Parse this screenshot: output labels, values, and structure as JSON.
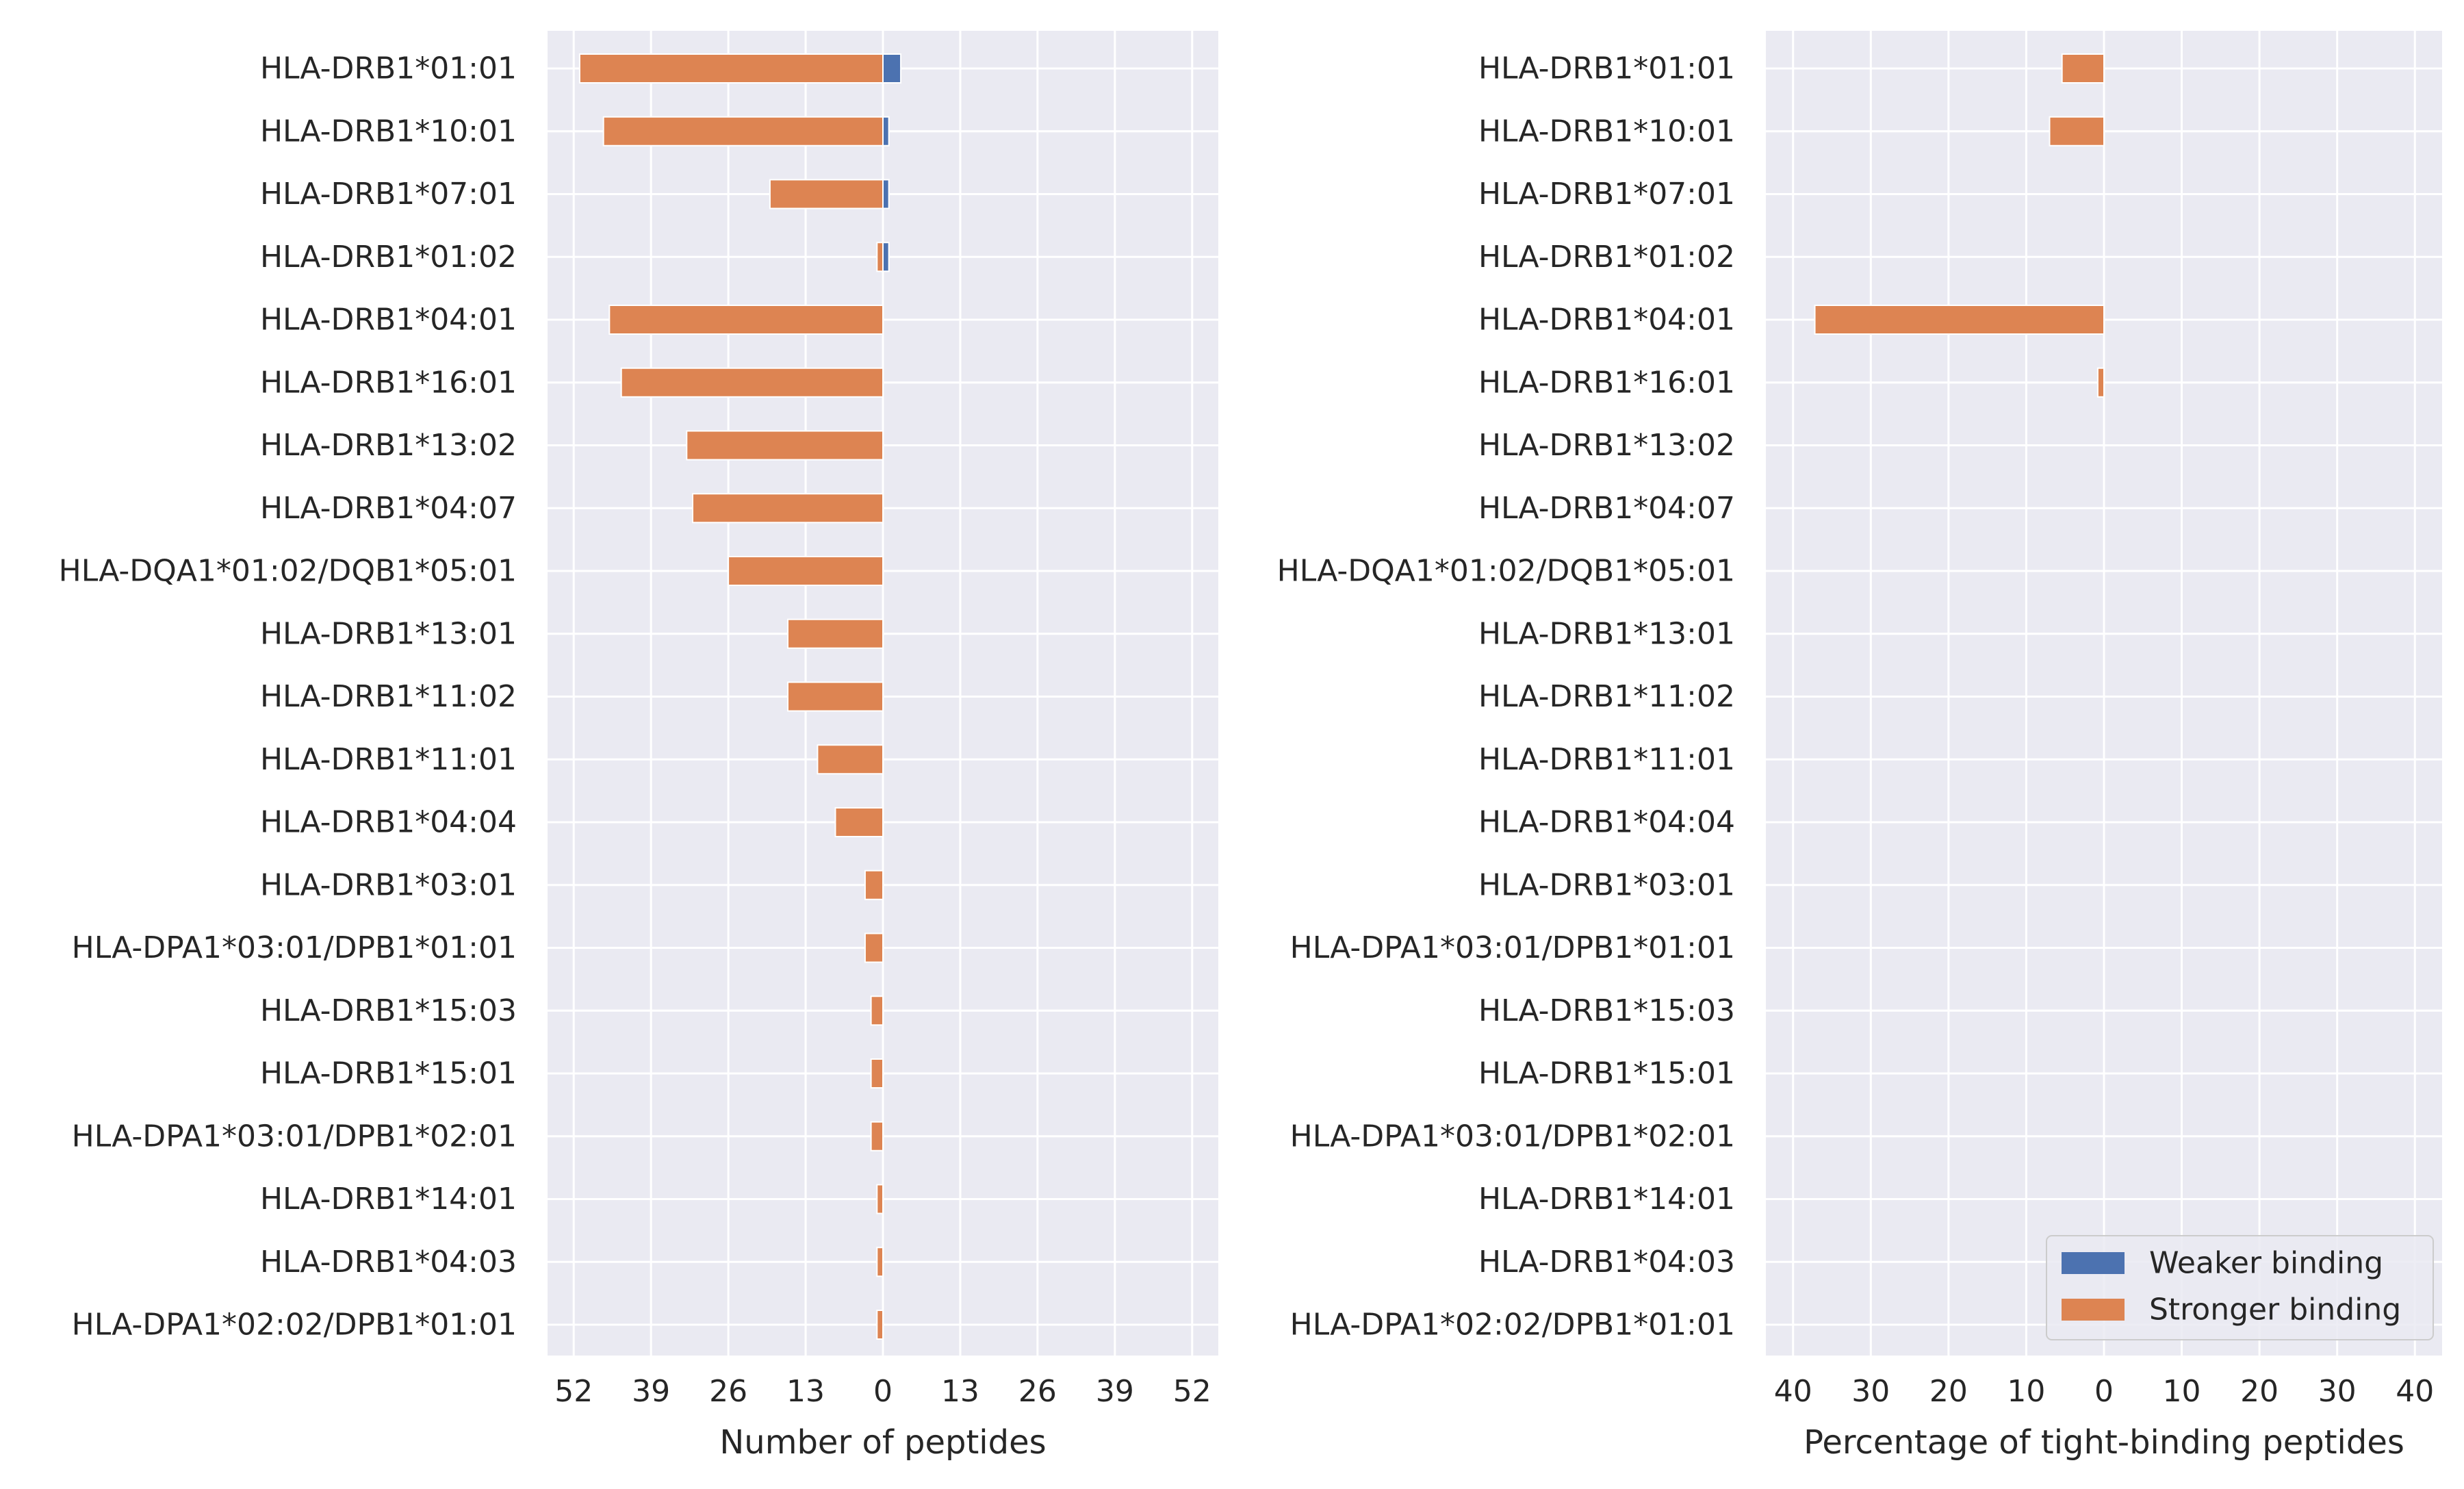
{
  "chart_data": [
    {
      "type": "bar",
      "orientation": "horizontal",
      "xlabel": "Number of peptides",
      "xlim": [
        -56.4,
        56.4
      ],
      "xticks": [
        -52,
        -39,
        -26,
        -13,
        0,
        13,
        26,
        39,
        52
      ],
      "xtick_labels": [
        "52",
        "39",
        "26",
        "13",
        "0",
        "13",
        "26",
        "39",
        "52"
      ],
      "grid": true,
      "categories": [
        "HLA-DRB1*01:01",
        "HLA-DRB1*10:01",
        "HLA-DRB1*07:01",
        "HLA-DRB1*01:02",
        "HLA-DRB1*04:01",
        "HLA-DRB1*16:01",
        "HLA-DRB1*13:02",
        "HLA-DRB1*04:07",
        "HLA-DQA1*01:02/DQB1*05:01",
        "HLA-DRB1*13:01",
        "HLA-DRB1*11:02",
        "HLA-DRB1*11:01",
        "HLA-DRB1*04:04",
        "HLA-DRB1*03:01",
        "HLA-DPA1*03:01/DPB1*01:01",
        "HLA-DRB1*15:03",
        "HLA-DRB1*15:01",
        "HLA-DPA1*03:01/DPB1*02:01",
        "HLA-DRB1*14:01",
        "HLA-DRB1*04:03",
        "HLA-DPA1*02:02/DPB1*01:01"
      ],
      "series": [
        {
          "name": "Weaker binding",
          "color": "#4c72b0",
          "values": [
            3,
            1,
            1,
            1,
            0,
            0,
            0,
            0,
            0,
            0,
            0,
            0,
            0,
            0,
            0,
            0,
            0,
            0,
            0,
            0,
            0
          ]
        },
        {
          "name": "Stronger binding",
          "color": "#dd8452",
          "values": [
            -51,
            -47,
            -19,
            -1,
            -46,
            -44,
            -33,
            -32,
            -26,
            -16,
            -16,
            -11,
            -8,
            -3,
            -3,
            -2,
            -2,
            -2,
            -1,
            -1,
            -1
          ]
        }
      ]
    },
    {
      "type": "bar",
      "orientation": "horizontal",
      "xlabel": "Percentage of tight-binding peptides",
      "xlim": [
        -43.5,
        43.5
      ],
      "xticks": [
        -40,
        -30,
        -20,
        -10,
        0,
        10,
        20,
        30,
        40
      ],
      "xtick_labels": [
        "40",
        "30",
        "20",
        "10",
        "0",
        "10",
        "20",
        "30",
        "40"
      ],
      "grid": true,
      "categories": [
        "HLA-DRB1*01:01",
        "HLA-DRB1*10:01",
        "HLA-DRB1*07:01",
        "HLA-DRB1*01:02",
        "HLA-DRB1*04:01",
        "HLA-DRB1*16:01",
        "HLA-DRB1*13:02",
        "HLA-DRB1*04:07",
        "HLA-DQA1*01:02/DQB1*05:01",
        "HLA-DRB1*13:01",
        "HLA-DRB1*11:02",
        "HLA-DRB1*11:01",
        "HLA-DRB1*04:04",
        "HLA-DRB1*03:01",
        "HLA-DPA1*03:01/DPB1*01:01",
        "HLA-DRB1*15:03",
        "HLA-DRB1*15:01",
        "HLA-DPA1*03:01/DPB1*02:01",
        "HLA-DRB1*14:01",
        "HLA-DRB1*04:03",
        "HLA-DPA1*02:02/DPB1*01:01"
      ],
      "series": [
        {
          "name": "Weaker binding",
          "color": "#4c72b0",
          "values": [
            0,
            0,
            0,
            0,
            0,
            0,
            0,
            0,
            0,
            0,
            0,
            0,
            0,
            0,
            0,
            0,
            0,
            0,
            0,
            0,
            0
          ]
        },
        {
          "name": "Stronger binding",
          "color": "#dd8452",
          "values": [
            -5.4,
            -7.0,
            0,
            0,
            -37.2,
            -0.8,
            0,
            0,
            0,
            0,
            0,
            0,
            0,
            0,
            0,
            0,
            0,
            0,
            0,
            0,
            0
          ]
        }
      ],
      "legend": {
        "position": "lower right",
        "entries": [
          "Weaker binding",
          "Stronger binding"
        ]
      }
    }
  ]
}
